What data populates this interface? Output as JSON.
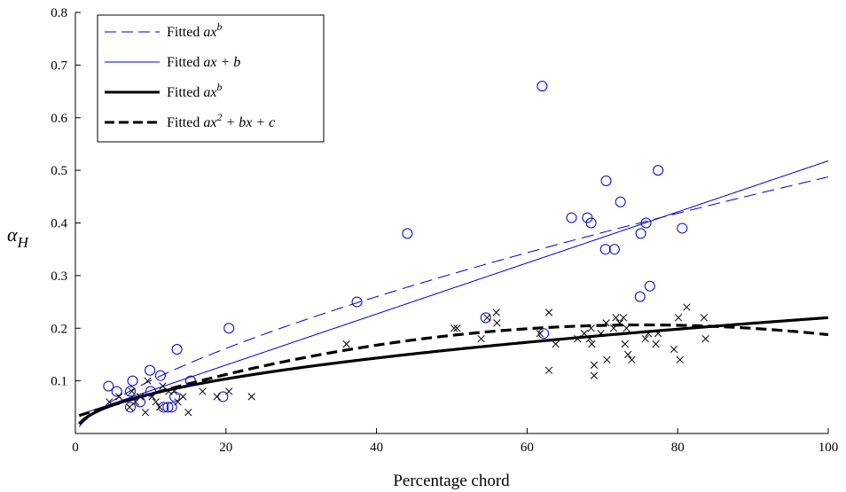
{
  "chart_data": {
    "type": "scatter",
    "xlabel": "Percentage chord",
    "ylabel": "α",
    "ylabel_sub": "H",
    "xlim": [
      0,
      100
    ],
    "ylim": [
      0,
      0.8
    ],
    "x_ticks": [
      0,
      20,
      40,
      60,
      80,
      100
    ],
    "y_ticks": [
      0.1,
      0.2,
      0.3,
      0.4,
      0.5,
      0.6,
      0.7,
      0.8
    ],
    "grid": false,
    "legend_position": "top-left",
    "legend": [
      {
        "prefix": "Fitted ",
        "formula": "ax",
        "sup": "b",
        "rest": "",
        "color": "#0000cc",
        "style": "dashed",
        "width": 1
      },
      {
        "prefix": "Fitted ",
        "formula": "ax",
        "sup": "",
        "rest": " + b",
        "color": "#0000cc",
        "style": "solid",
        "width": 1
      },
      {
        "prefix": "Fitted ",
        "formula": "ax",
        "sup": "b",
        "rest": "",
        "color": "#000000",
        "style": "solid",
        "width": 3
      },
      {
        "prefix": "Fitted ",
        "formula": "ax",
        "sup": "2",
        "rest": " + bx + c",
        "color": "#000000",
        "style": "dashed",
        "width": 3
      }
    ],
    "series": [
      {
        "marker": "circle",
        "color": "#0000cc",
        "points": [
          [
            4.4,
            0.09
          ],
          [
            5.5,
            0.08
          ],
          [
            7.3,
            0.08
          ],
          [
            7.6,
            0.1
          ],
          [
            7.3,
            0.05
          ],
          [
            8.6,
            0.06
          ],
          [
            9.9,
            0.12
          ],
          [
            10.0,
            0.08
          ],
          [
            11.3,
            0.11
          ],
          [
            11.7,
            0.05
          ],
          [
            12.3,
            0.05
          ],
          [
            12.8,
            0.05
          ],
          [
            13.2,
            0.07
          ],
          [
            13.5,
            0.16
          ],
          [
            15.3,
            0.1
          ],
          [
            19.6,
            0.07
          ],
          [
            20.4,
            0.2
          ],
          [
            37.4,
            0.25
          ],
          [
            44.1,
            0.38
          ],
          [
            54.5,
            0.22
          ],
          [
            62.0,
            0.66
          ],
          [
            62.2,
            0.19
          ],
          [
            65.9,
            0.41
          ],
          [
            68.0,
            0.41
          ],
          [
            68.5,
            0.4
          ],
          [
            70.4,
            0.35
          ],
          [
            70.5,
            0.48
          ],
          [
            71.6,
            0.35
          ],
          [
            72.4,
            0.44
          ],
          [
            75.0,
            0.26
          ],
          [
            75.1,
            0.38
          ],
          [
            75.8,
            0.4
          ],
          [
            76.3,
            0.28
          ],
          [
            77.4,
            0.5
          ],
          [
            80.6,
            0.39
          ]
        ]
      },
      {
        "marker": "cross",
        "color": "#000000",
        "points": [
          [
            4.5,
            0.06
          ],
          [
            5.8,
            0.07
          ],
          [
            7.2,
            0.05
          ],
          [
            7.5,
            0.08
          ],
          [
            8.0,
            0.06
          ],
          [
            8.6,
            0.07
          ],
          [
            9.3,
            0.04
          ],
          [
            9.6,
            0.1
          ],
          [
            10.2,
            0.07
          ],
          [
            10.7,
            0.06
          ],
          [
            11.2,
            0.05
          ],
          [
            11.6,
            0.09
          ],
          [
            12.4,
            0.08
          ],
          [
            13.1,
            0.08
          ],
          [
            13.6,
            0.06
          ],
          [
            14.3,
            0.07
          ],
          [
            15.0,
            0.04
          ],
          [
            16.9,
            0.08
          ],
          [
            18.8,
            0.07
          ],
          [
            20.4,
            0.08
          ],
          [
            23.4,
            0.07
          ],
          [
            36.0,
            0.17
          ],
          [
            50.3,
            0.2
          ],
          [
            50.7,
            0.2
          ],
          [
            53.9,
            0.18
          ],
          [
            54.7,
            0.22
          ],
          [
            55.9,
            0.23
          ],
          [
            56.0,
            0.21
          ],
          [
            61.7,
            0.19
          ],
          [
            62.9,
            0.12
          ],
          [
            62.9,
            0.23
          ],
          [
            63.8,
            0.17
          ],
          [
            66.7,
            0.18
          ],
          [
            67.6,
            0.19
          ],
          [
            68.3,
            0.18
          ],
          [
            68.5,
            0.2
          ],
          [
            68.6,
            0.17
          ],
          [
            68.9,
            0.13
          ],
          [
            68.9,
            0.11
          ],
          [
            69.8,
            0.19
          ],
          [
            70.5,
            0.21
          ],
          [
            70.6,
            0.14
          ],
          [
            71.5,
            0.2
          ],
          [
            71.8,
            0.22
          ],
          [
            72.3,
            0.21
          ],
          [
            72.8,
            0.22
          ],
          [
            73.0,
            0.17
          ],
          [
            73.2,
            0.2
          ],
          [
            73.4,
            0.15
          ],
          [
            73.9,
            0.14
          ],
          [
            75.7,
            0.18
          ],
          [
            76.1,
            0.19
          ],
          [
            77.1,
            0.17
          ],
          [
            77.4,
            0.19
          ],
          [
            79.5,
            0.16
          ],
          [
            80.1,
            0.22
          ],
          [
            80.3,
            0.14
          ],
          [
            81.2,
            0.24
          ],
          [
            83.5,
            0.22
          ],
          [
            83.7,
            0.18
          ]
        ]
      }
    ],
    "fits": [
      {
        "name": "Fitted ax^b (blue)",
        "kind": "power",
        "a": 0.0207,
        "b": 0.686,
        "color": "#0000cc",
        "style": "dashed",
        "width": 1
      },
      {
        "name": "Fitted ax + b",
        "kind": "linear",
        "a": 0.00485,
        "b": 0.033,
        "color": "#0000cc",
        "style": "solid",
        "width": 1
      },
      {
        "name": "Fitted ax^b (black)",
        "kind": "power",
        "a": 0.0255,
        "b": 0.468,
        "color": "#000000",
        "style": "solid",
        "width": 3.2
      },
      {
        "name": "Fitted ax^2 + bx + c",
        "kind": "quadratic",
        "a": -3.07e-05,
        "b": 0.00463,
        "c": 0.0317,
        "color": "#000000",
        "style": "dashed",
        "width": 3.2
      }
    ]
  }
}
